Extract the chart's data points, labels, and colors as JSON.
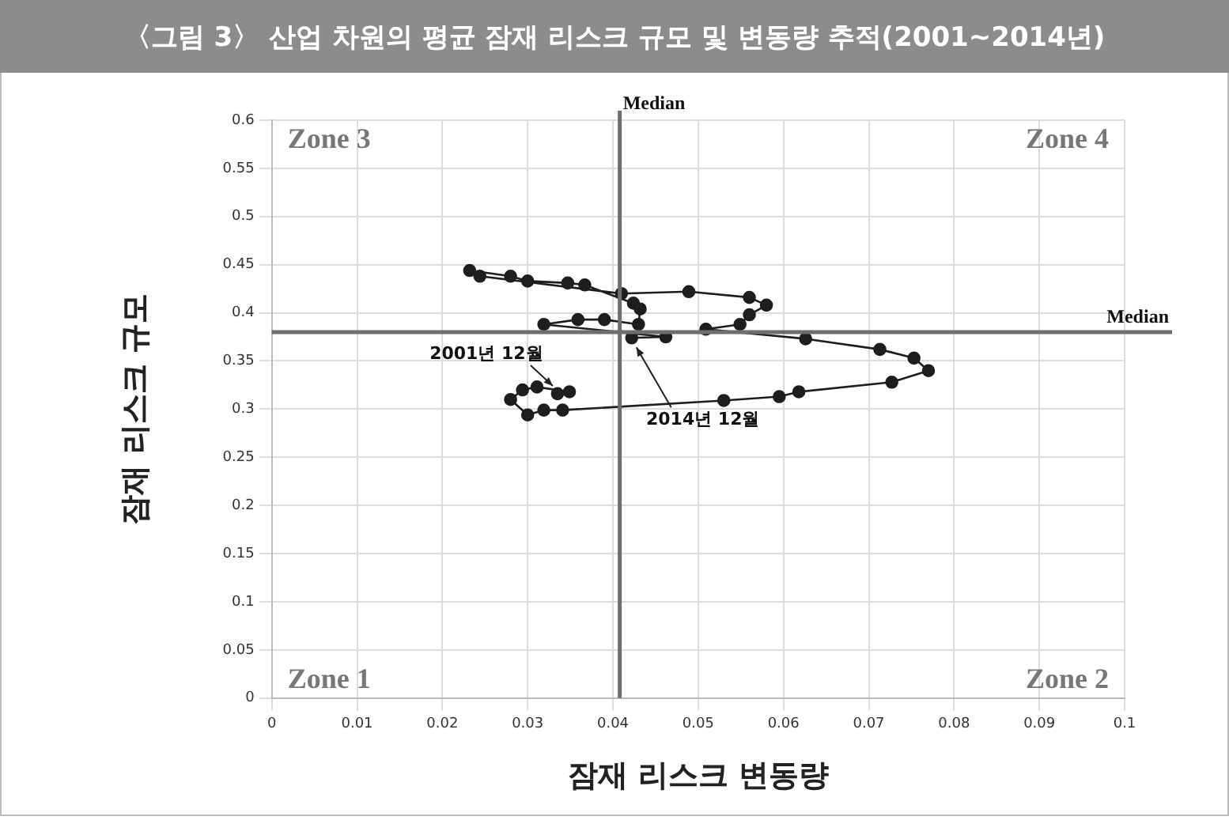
{
  "chart_data": {
    "type": "line",
    "title": "〈그림 3〉 산업 차원의 평균 잠재 리스크 규모 및 변동량 추적(2001~2014년)",
    "xlabel": "잠재 리스크 변동량",
    "ylabel": "잠재 리스크 규모",
    "series": [
      {
        "color": "#1e1e1e",
        "x": [
          0.0335,
          0.0349,
          0.0311,
          0.0294,
          0.028,
          0.03,
          0.0319,
          0.0341,
          0.053,
          0.0595,
          0.0618,
          0.0727,
          0.077,
          0.0753,
          0.0713,
          0.0626,
          0.0509,
          0.0549,
          0.056,
          0.058,
          0.056,
          0.0489,
          0.041,
          0.0244,
          0.0232,
          0.028,
          0.03,
          0.0347,
          0.0367,
          0.0424,
          0.0432,
          0.043,
          0.039,
          0.0359,
          0.0319,
          0.0462,
          0.0422
        ],
        "values": [
          0.316,
          0.318,
          0.323,
          0.32,
          0.31,
          0.294,
          0.299,
          0.299,
          0.309,
          0.313,
          0.318,
          0.328,
          0.34,
          0.353,
          0.362,
          0.373,
          0.383,
          0.388,
          0.398,
          0.408,
          0.416,
          0.422,
          0.42,
          0.438,
          0.444,
          0.438,
          0.433,
          0.431,
          0.429,
          0.41,
          0.404,
          0.388,
          0.393,
          0.393,
          0.388,
          0.375,
          0.374
        ]
      }
    ],
    "xlim": [
      0,
      0.1
    ],
    "xticks": [
      0,
      0.01,
      0.02,
      0.03,
      0.04,
      0.05,
      0.06,
      0.07,
      0.08,
      0.09,
      0.1
    ],
    "ylim": [
      0,
      0.6
    ],
    "yticks": [
      0,
      0.05,
      0.1,
      0.15,
      0.2,
      0.25,
      0.3,
      0.35,
      0.4,
      0.45,
      0.5,
      0.55,
      0.6
    ],
    "ref_lines": [
      {
        "axis": "x",
        "value": 0.0408,
        "label": "Median",
        "color": "#6e6e6e"
      },
      {
        "axis": "y",
        "value": 0.38,
        "label": "Median",
        "color": "#6e6e6e"
      }
    ],
    "annotations": [
      "Zone 3",
      "Zone 4",
      "Zone 1",
      "Zone 2",
      {
        "text": "2001년 12월",
        "x": 0.0335,
        "y": 0.316
      },
      {
        "text": "2014년 12월",
        "x": 0.0422,
        "y": 0.374
      }
    ],
    "grid": true,
    "marker": "circle",
    "line_style": "solid",
    "legend": false
  }
}
